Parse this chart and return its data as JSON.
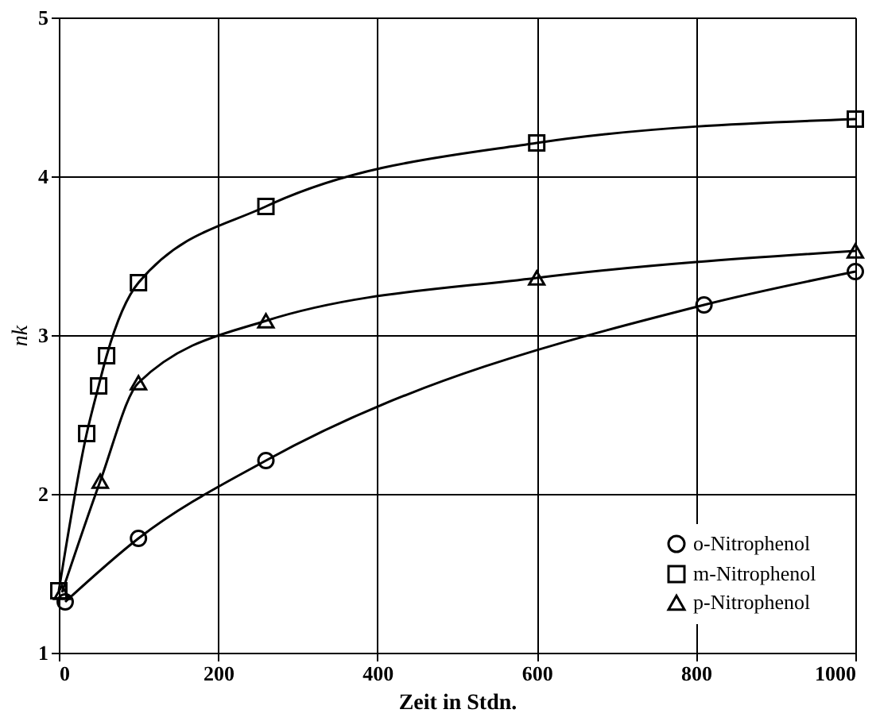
{
  "chart_data": {
    "type": "line",
    "xlabel": "Zeit in Stdn.",
    "ylabel": "nk",
    "xlim": [
      0,
      1000
    ],
    "xticks": [
      0,
      200,
      400,
      600,
      800,
      1000
    ],
    "ylim": [
      1,
      5
    ],
    "yticks": [
      1,
      2,
      3,
      4,
      5
    ],
    "grid": true,
    "legend": "bottom right",
    "series": [
      {
        "name": "o-Nitrophenol",
        "color": "#000000",
        "marker": "circle",
        "x": [
          8,
          100,
          260,
          810,
          1000
        ],
        "values": [
          1.32,
          1.72,
          2.21,
          3.19,
          3.4
        ]
      },
      {
        "name": "m-Nitrophenol",
        "color": "#000000",
        "marker": "square",
        "x": [
          0,
          35,
          50,
          60,
          100,
          260,
          600,
          1000
        ],
        "values": [
          1.39,
          2.38,
          2.68,
          2.87,
          3.33,
          3.81,
          4.21,
          4.36
        ]
      },
      {
        "name": "p-Nitrophenol",
        "color": "#000000",
        "marker": "triangle",
        "x": [
          4,
          52,
          100,
          260,
          600,
          1000
        ],
        "values": [
          1.38,
          2.08,
          2.7,
          3.09,
          3.36,
          3.53
        ]
      }
    ]
  }
}
